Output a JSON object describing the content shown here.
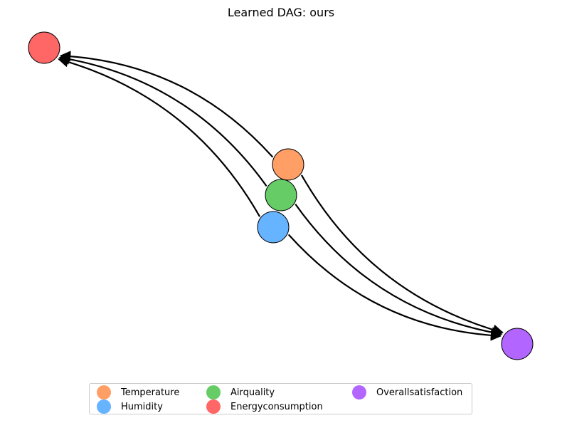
{
  "title": "Learned DAG: ours",
  "nodes": [
    {
      "id": "temperature",
      "label": "Temperature",
      "color": "#ff9f66"
    },
    {
      "id": "humidity",
      "label": "Humidity",
      "color": "#66b3ff"
    },
    {
      "id": "airquality",
      "label": "Airquality",
      "color": "#66cc66"
    },
    {
      "id": "energy",
      "label": "Energyconsumption",
      "color": "#ff6666"
    },
    {
      "id": "satisfaction",
      "label": "Overallsatisfaction",
      "color": "#b266ff"
    }
  ],
  "edges": [
    {
      "from": "temperature",
      "to": "energy"
    },
    {
      "from": "airquality",
      "to": "energy"
    },
    {
      "from": "humidity",
      "to": "energy"
    },
    {
      "from": "temperature",
      "to": "satisfaction"
    },
    {
      "from": "airquality",
      "to": "satisfaction"
    },
    {
      "from": "humidity",
      "to": "satisfaction"
    }
  ],
  "legend": {
    "items": [
      "Temperature",
      "Airquality",
      "Overallsatisfaction",
      "Humidity",
      "Energyconsumption"
    ]
  }
}
